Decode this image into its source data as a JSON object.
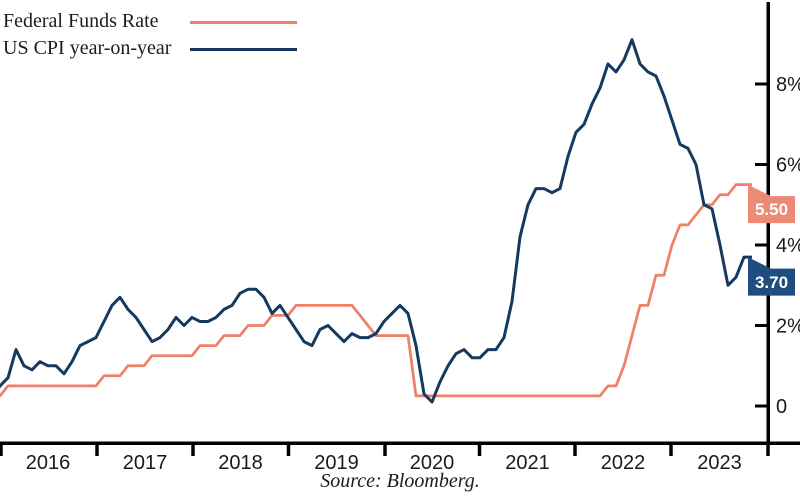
{
  "legend": {
    "items": [
      {
        "label": "Federal Funds Rate",
        "series": "fed_funds"
      },
      {
        "label": "US CPI year-on-year",
        "series": "cpi"
      }
    ]
  },
  "source": "Source: Bloomberg.",
  "colors": {
    "fed_funds_line": "#ee8168",
    "fed_funds_flag": "#ec8b75",
    "cpi_line": "#16395f",
    "cpi_flag": "#1d4e7d",
    "axis": "#000000",
    "tick_text": "#1a1a1a",
    "flag_text": "#ffffff"
  },
  "flags": [
    {
      "series": "fed_funds",
      "value": "5.50"
    },
    {
      "series": "cpi",
      "value": "3.70"
    }
  ],
  "axis": {
    "y_ticks": [
      {
        "label": "8%",
        "value": 8
      },
      {
        "label": "6%",
        "value": 6
      },
      {
        "label": "4%",
        "value": 4
      },
      {
        "label": "2%",
        "value": 2
      },
      {
        "label": "0",
        "value": 0
      }
    ],
    "x_ticks": [
      "2016",
      "2017",
      "2018",
      "2019",
      "2020",
      "2021",
      "2022",
      "2023"
    ]
  },
  "chart_data": {
    "type": "line",
    "title": "",
    "xlabel": "",
    "ylabel": "",
    "x_start": "2015-10",
    "x_end": "2023-09",
    "frequency": "monthly",
    "ylim": [
      0,
      9.5
    ],
    "grid": false,
    "legend_position": "top-left",
    "y_axis_side": "right",
    "series": [
      {
        "name": "Federal Funds Rate",
        "color_key": "fed_funds_line",
        "end_label": "5.50",
        "values": [
          0.25,
          0.25,
          0.5,
          0.5,
          0.5,
          0.5,
          0.5,
          0.5,
          0.5,
          0.5,
          0.5,
          0.5,
          0.5,
          0.5,
          0.75,
          0.75,
          0.75,
          1.0,
          1.0,
          1.0,
          1.25,
          1.25,
          1.25,
          1.25,
          1.25,
          1.25,
          1.5,
          1.5,
          1.5,
          1.75,
          1.75,
          1.75,
          2.0,
          2.0,
          2.0,
          2.25,
          2.25,
          2.25,
          2.5,
          2.5,
          2.5,
          2.5,
          2.5,
          2.5,
          2.5,
          2.5,
          2.25,
          2.0,
          1.75,
          1.75,
          1.75,
          1.75,
          1.75,
          0.25,
          0.25,
          0.25,
          0.25,
          0.25,
          0.25,
          0.25,
          0.25,
          0.25,
          0.25,
          0.25,
          0.25,
          0.25,
          0.25,
          0.25,
          0.25,
          0.25,
          0.25,
          0.25,
          0.25,
          0.25,
          0.25,
          0.25,
          0.25,
          0.5,
          0.5,
          1.0,
          1.75,
          2.5,
          2.5,
          3.25,
          3.25,
          4.0,
          4.5,
          4.5,
          4.75,
          5.0,
          5.0,
          5.25,
          5.25,
          5.5,
          5.5,
          5.5
        ]
      },
      {
        "name": "US CPI year-on-year",
        "color_key": "cpi_line",
        "end_label": "3.70",
        "values": [
          0.2,
          0.5,
          0.7,
          1.4,
          1.0,
          0.9,
          1.1,
          1.0,
          1.0,
          0.8,
          1.1,
          1.5,
          1.6,
          1.7,
          2.1,
          2.5,
          2.7,
          2.4,
          2.2,
          1.9,
          1.6,
          1.7,
          1.9,
          2.2,
          2.0,
          2.2,
          2.1,
          2.1,
          2.2,
          2.4,
          2.5,
          2.8,
          2.9,
          2.9,
          2.7,
          2.3,
          2.5,
          2.2,
          1.9,
          1.6,
          1.5,
          1.9,
          2.0,
          1.8,
          1.6,
          1.8,
          1.7,
          1.7,
          1.8,
          2.1,
          2.3,
          2.5,
          2.3,
          1.5,
          0.3,
          0.1,
          0.6,
          1.0,
          1.3,
          1.4,
          1.2,
          1.2,
          1.4,
          1.4,
          1.7,
          2.6,
          4.2,
          5.0,
          5.4,
          5.4,
          5.3,
          5.4,
          6.2,
          6.8,
          7.0,
          7.5,
          7.9,
          8.5,
          8.3,
          8.6,
          9.1,
          8.5,
          8.3,
          8.2,
          7.7,
          7.1,
          6.5,
          6.4,
          6.0,
          5.0,
          4.9,
          4.0,
          3.0,
          3.2,
          3.7,
          3.7
        ]
      }
    ]
  }
}
